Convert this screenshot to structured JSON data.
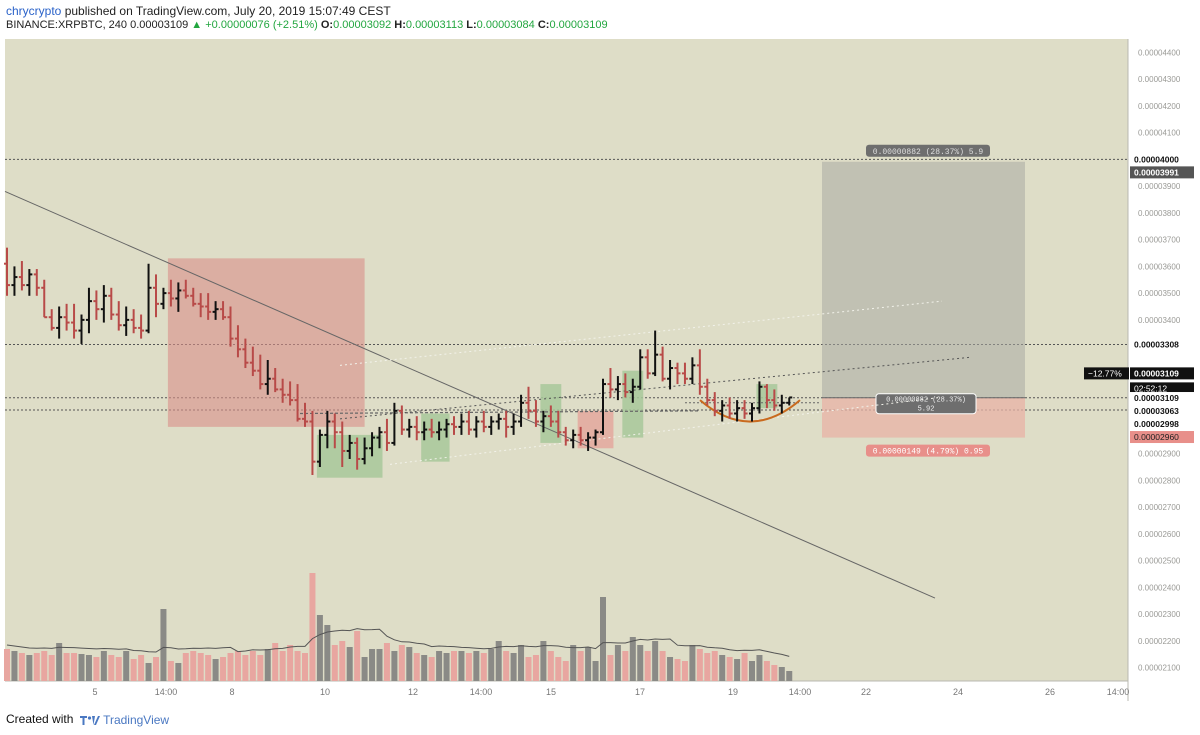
{
  "header": {
    "author": "chrycrypto",
    "published": "published on TradingView.com, July 20, 2019 15:07:49 CEST",
    "symbol": "BINANCE:XRPBTC, 240",
    "last": "0.00003109",
    "change_arrow": "▲",
    "change": "+0.00000076 (+2.51%)",
    "o_label": "O:",
    "o_val": "0.00003092",
    "h_label": "H:",
    "h_val": "0.00003113",
    "l_label": "L:",
    "l_val": "0.00003084",
    "c_label": "C:",
    "c_val": "0.00003109"
  },
  "footer": {
    "created_with": "Created with",
    "brand": "TradingView"
  },
  "colors": {
    "chart_bg": "#deddc7",
    "bull": "#111111",
    "bear": "#b84a48",
    "vol_bull": "#8a8a86",
    "vol_bear": "#e8a6a0",
    "short_box": "#d98f88",
    "profit_box": "#a9a9a2",
    "loss_box": "#e8b2a6"
  },
  "chart_data": {
    "type": "ohlc",
    "instrument": "XRPBTC",
    "exchange": "BINANCE",
    "timeframe": "240",
    "y_range": [
      2.05e-05,
      4.45e-05
    ],
    "y_ticks": [
      "0.00004400",
      "0.00004300",
      "0.00004200",
      "0.00004100",
      "0.00004000",
      "0.00003900",
      "0.00003800",
      "0.00003700",
      "0.00003600",
      "0.00003500",
      "0.00003400",
      "0.00003300",
      "0.00003200",
      "0.00003100",
      "0.00003000",
      "0.00002900",
      "0.00002800",
      "0.00002700",
      "0.00002600",
      "0.00002500",
      "0.00002400",
      "0.00002300",
      "0.00002200",
      "0.00002100"
    ],
    "x_ticks": [
      "5",
      "14:00",
      "8",
      "10",
      "12",
      "14:00",
      "15",
      "17",
      "19",
      "14:00",
      "22",
      "24",
      "26",
      "14:00"
    ],
    "horizontal_levels": [
      4e-05,
      3.308e-05,
      3.109e-05,
      3.063e-05
    ],
    "price_labels": [
      {
        "text": "0.00004000",
        "kind": "level"
      },
      {
        "text": "0.00003991",
        "kind": "dark"
      },
      {
        "text": "0.00003308",
        "kind": "level"
      },
      {
        "text": "0.00003109",
        "kind": "current"
      },
      {
        "text": "02:52:12",
        "kind": "countdown"
      },
      {
        "text": "0.00003109",
        "kind": "level"
      },
      {
        "text": "0.00003063",
        "kind": "level"
      },
      {
        "text": "0.00002998",
        "kind": "level"
      },
      {
        "text": "0.00002960",
        "kind": "red"
      }
    ],
    "pct_label": "−12.77%",
    "position": {
      "entry": 3.109e-05,
      "target": 3.991e-05,
      "stop": 2.96e-05,
      "target_label": "0.00000882 (28.37%) 5.9",
      "info_label_1": "0.00000882 (28.37%)",
      "info_label_2": "5.92",
      "stop_label": "0.00000149 (4.79%) 0.95"
    },
    "ohlc": [
      [
        3.61e-05,
        3.67e-05,
        3.49e-05,
        3.53e-05
      ],
      [
        3.53e-05,
        3.6e-05,
        3.49e-05,
        3.56e-05
      ],
      [
        3.56e-05,
        3.62e-05,
        3.51e-05,
        3.53e-05
      ],
      [
        3.53e-05,
        3.59e-05,
        3.49e-05,
        3.57e-05
      ],
      [
        3.57e-05,
        3.59e-05,
        3.49e-05,
        3.52e-05
      ],
      [
        3.52e-05,
        3.55e-05,
        3.41e-05,
        3.41e-05
      ],
      [
        3.41e-05,
        3.44e-05,
        3.36e-05,
        3.37e-05
      ],
      [
        3.37e-05,
        3.45e-05,
        3.33e-05,
        3.41e-05
      ],
      [
        3.41e-05,
        3.46e-05,
        3.36e-05,
        3.39e-05
      ],
      [
        3.39e-05,
        3.46e-05,
        3.33e-05,
        3.36e-05
      ],
      [
        3.36e-05,
        3.42e-05,
        3.31e-05,
        3.4e-05
      ],
      [
        3.4e-05,
        3.52e-05,
        3.35e-05,
        3.47e-05
      ],
      [
        3.47e-05,
        3.51e-05,
        3.4e-05,
        3.44e-05
      ],
      [
        3.44e-05,
        3.53e-05,
        3.39e-05,
        3.49e-05
      ],
      [
        3.49e-05,
        3.52e-05,
        3.4e-05,
        3.42e-05
      ],
      [
        3.42e-05,
        3.47e-05,
        3.36e-05,
        3.38e-05
      ],
      [
        3.38e-05,
        3.45e-05,
        3.34e-05,
        3.4e-05
      ],
      [
        3.4e-05,
        3.44e-05,
        3.35e-05,
        3.37e-05
      ],
      [
        3.37e-05,
        3.42e-05,
        3.33e-05,
        3.36e-05
      ],
      [
        3.36e-05,
        3.61e-05,
        3.35e-05,
        3.52e-05
      ],
      [
        3.52e-05,
        3.57e-05,
        3.41e-05,
        3.46e-05
      ],
      [
        3.46e-05,
        3.52e-05,
        3.44e-05,
        3.5e-05
      ],
      [
        3.5e-05,
        3.55e-05,
        3.45e-05,
        3.48e-05
      ],
      [
        3.48e-05,
        3.54e-05,
        3.43e-05,
        3.51e-05
      ],
      [
        3.51e-05,
        3.55e-05,
        3.48e-05,
        3.49e-05
      ],
      [
        3.49e-05,
        3.52e-05,
        3.45e-05,
        3.46e-05
      ],
      [
        3.46e-05,
        3.5e-05,
        3.41e-05,
        3.45e-05
      ],
      [
        3.45e-05,
        3.5e-05,
        3.4e-05,
        3.43e-05
      ],
      [
        3.43e-05,
        3.47e-05,
        3.4e-05,
        3.44e-05
      ],
      [
        3.44e-05,
        3.47e-05,
        3.4e-05,
        3.41e-05
      ],
      [
        3.41e-05,
        3.45e-05,
        3.3e-05,
        3.33e-05
      ],
      [
        3.33e-05,
        3.38e-05,
        3.26e-05,
        3.29e-05
      ],
      [
        3.29e-05,
        3.33e-05,
        3.22e-05,
        3.24e-05
      ],
      [
        3.24e-05,
        3.3e-05,
        3.19e-05,
        3.21e-05
      ],
      [
        3.21e-05,
        3.27e-05,
        3.14e-05,
        3.16e-05
      ],
      [
        3.16e-05,
        3.25e-05,
        3.12e-05,
        3.18e-05
      ],
      [
        3.18e-05,
        3.22e-05,
        3.13e-05,
        3.14e-05
      ],
      [
        3.14e-05,
        3.18e-05,
        3.09e-05,
        3.12e-05
      ],
      [
        3.12e-05,
        3.17e-05,
        3.08e-05,
        3.1e-05
      ],
      [
        3.1e-05,
        3.16e-05,
        3.02e-05,
        3.03e-05
      ],
      [
        3.03e-05,
        3.09e-05,
        3e-05,
        3.02e-05
      ],
      [
        3.02e-05,
        3.06e-05,
        2.82e-05,
        2.87e-05
      ],
      [
        2.87e-05,
        2.99e-05,
        2.85e-05,
        2.97e-05
      ],
      [
        2.97e-05,
        3.06e-05,
        2.92e-05,
        3.02e-05
      ],
      [
        3.02e-05,
        3.05e-05,
        2.92e-05,
        2.98e-05
      ],
      [
        2.98e-05,
        3.02e-05,
        2.85e-05,
        2.91e-05
      ],
      [
        2.91e-05,
        2.97e-05,
        2.88e-05,
        2.94e-05
      ],
      [
        2.94e-05,
        2.96e-05,
        2.84e-05,
        2.88e-05
      ],
      [
        2.88e-05,
        2.96e-05,
        2.86e-05,
        2.92e-05
      ],
      [
        2.92e-05,
        2.98e-05,
        2.89e-05,
        2.96e-05
      ],
      [
        2.96e-05,
        3e-05,
        2.92e-05,
        2.98e-05
      ],
      [
        2.98e-05,
        3.03e-05,
        2.91e-05,
        2.94e-05
      ],
      [
        2.94e-05,
        3.09e-05,
        2.93e-05,
        3.06e-05
      ],
      [
        3.06e-05,
        3.08e-05,
        2.97e-05,
        2.99e-05
      ],
      [
        2.99e-05,
        3.03e-05,
        2.96e-05,
        3e-05
      ],
      [
        3e-05,
        3.04e-05,
        2.95e-05,
        2.98e-05
      ],
      [
        2.98e-05,
        3.02e-05,
        2.95e-05,
        2.99e-05
      ],
      [
        2.99e-05,
        3.03e-05,
        2.96e-05,
        2.98e-05
      ],
      [
        2.98e-05,
        3.02e-05,
        2.95e-05,
        2.99e-05
      ],
      [
        2.99e-05,
        3.03e-05,
        2.96e-05,
        3.01e-05
      ],
      [
        3.01e-05,
        3.04e-05,
        2.97e-05,
        3e-05
      ],
      [
        3e-05,
        3.05e-05,
        2.97e-05,
        3.02e-05
      ],
      [
        3.02e-05,
        3.06e-05,
        2.97e-05,
        2.99e-05
      ],
      [
        2.99e-05,
        3.04e-05,
        2.96e-05,
        3.02e-05
      ],
      [
        3.02e-05,
        3.06e-05,
        2.98e-05,
        3e-05
      ],
      [
        3e-05,
        3.04e-05,
        2.97e-05,
        3.02e-05
      ],
      [
        3.02e-05,
        3.05e-05,
        2.99e-05,
        3.03e-05
      ],
      [
        3.03e-05,
        3.06e-05,
        2.96e-05,
        3e-05
      ],
      [
        3e-05,
        3.05e-05,
        2.97e-05,
        3.02e-05
      ],
      [
        3.02e-05,
        3.12e-05,
        3e-05,
        3.09e-05
      ],
      [
        3.09e-05,
        3.15e-05,
        3.03e-05,
        3.06e-05
      ],
      [
        3.06e-05,
        3.1e-05,
        3e-05,
        3.02e-05
      ],
      [
        3.02e-05,
        3.06e-05,
        2.98e-05,
        3.04e-05
      ],
      [
        3.04e-05,
        3.08e-05,
        3e-05,
        3.02e-05
      ],
      [
        3.02e-05,
        3.06e-05,
        2.96e-05,
        2.98e-05
      ],
      [
        2.98e-05,
        3e-05,
        2.93e-05,
        2.95e-05
      ],
      [
        2.95e-05,
        2.99e-05,
        2.92e-05,
        2.97e-05
      ],
      [
        2.97e-05,
        3e-05,
        2.93e-05,
        2.95e-05
      ],
      [
        2.95e-05,
        2.98e-05,
        2.91e-05,
        2.96e-05
      ],
      [
        2.96e-05,
        2.99e-05,
        2.93e-05,
        2.98e-05
      ],
      [
        2.98e-05,
        3.18e-05,
        2.97e-05,
        3.16e-05
      ],
      [
        3.16e-05,
        3.22e-05,
        3.11e-05,
        3.14e-05
      ],
      [
        3.14e-05,
        3.19e-05,
        3.1e-05,
        3.16e-05
      ],
      [
        3.16e-05,
        3.2e-05,
        3.11e-05,
        3.13e-05
      ],
      [
        3.13e-05,
        3.18e-05,
        3.09e-05,
        3.15e-05
      ],
      [
        3.15e-05,
        3.29e-05,
        3.14e-05,
        3.26e-05
      ],
      [
        3.26e-05,
        3.29e-05,
        3.18e-05,
        3.2e-05
      ],
      [
        3.2e-05,
        3.36e-05,
        3.19e-05,
        3.27e-05
      ],
      [
        3.27e-05,
        3.3e-05,
        3.17e-05,
        3.18e-05
      ],
      [
        3.18e-05,
        3.25e-05,
        3.14e-05,
        3.22e-05
      ],
      [
        3.22e-05,
        3.24e-05,
        3.16e-05,
        3.2e-05
      ],
      [
        3.2e-05,
        3.24e-05,
        3.16e-05,
        3.18e-05
      ],
      [
        3.18e-05,
        3.26e-05,
        3.16e-05,
        3.23e-05
      ],
      [
        3.23e-05,
        3.29e-05,
        3.12e-05,
        3.15e-05
      ],
      [
        3.15e-05,
        3.18e-05,
        3.08e-05,
        3.1e-05
      ],
      [
        3.1e-05,
        3.13e-05,
        3.04e-05,
        3.06e-05
      ],
      [
        3.06e-05,
        3.1e-05,
        3.02e-05,
        3.08e-05
      ],
      [
        3.08e-05,
        3.11e-05,
        3.03e-05,
        3.05e-05
      ],
      [
        3.05e-05,
        3.1e-05,
        3.02e-05,
        3.07e-05
      ],
      [
        3.07e-05,
        3.1e-05,
        3.03e-05,
        3.05e-05
      ],
      [
        3.05e-05,
        3.09e-05,
        3.02e-05,
        3.07e-05
      ],
      [
        3.07e-05,
        3.17e-05,
        3.05e-05,
        3.15e-05
      ],
      [
        3.15e-05,
        3.16e-05,
        3.07e-05,
        3.1e-05
      ],
      [
        3.1e-05,
        3.14e-05,
        3.06e-05,
        3.08e-05
      ],
      [
        3.08e-05,
        3.12e-05,
        3.05e-05,
        3.09e-05
      ],
      [
        3.09e-05,
        3.11e-05,
        3.08e-05,
        3.11e-05
      ]
    ],
    "volume": [
      32,
      30,
      28,
      26,
      28,
      30,
      26,
      38,
      28,
      28,
      27,
      26,
      24,
      30,
      26,
      24,
      30,
      22,
      26,
      18,
      24,
      72,
      20,
      18,
      28,
      30,
      28,
      26,
      22,
      24,
      28,
      30,
      26,
      30,
      26,
      32,
      38,
      30,
      36,
      30,
      28,
      108,
      66,
      56,
      36,
      40,
      34,
      50,
      24,
      32,
      32,
      38,
      30,
      36,
      34,
      28,
      26,
      24,
      30,
      28,
      30,
      30,
      28,
      30,
      28,
      32,
      40,
      30,
      28,
      36,
      24,
      26,
      40,
      30,
      24,
      20,
      36,
      30,
      34,
      20,
      84,
      26,
      36,
      30,
      44,
      36,
      30,
      40,
      30,
      24,
      22,
      20,
      36,
      32,
      28,
      30,
      26,
      24,
      22,
      28,
      20,
      26,
      20,
      16,
      14,
      10
    ]
  }
}
